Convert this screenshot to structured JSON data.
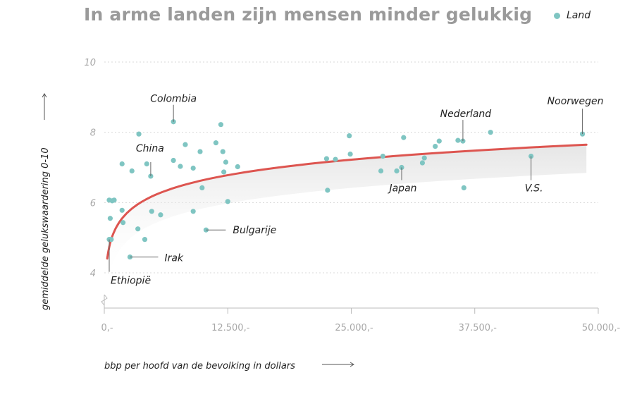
{
  "title": "In arme landen zijn mensen minder gelukkig",
  "legend": {
    "label": "Land",
    "color": "#7fc5c2"
  },
  "colors": {
    "point": "#7fc5c2",
    "trend": "#dd5550",
    "grid": "#d9d9d9",
    "axis": "#bbbbbb"
  },
  "chart_data": {
    "type": "scatter",
    "xlabel": "bbp per hoofd van de bevolking in dollars",
    "ylabel": "gemiddelde gelukswaardering 0-10",
    "xlim": [
      0,
      50000
    ],
    "ylim": [
      3.2,
      10
    ],
    "x_ticks": [
      0,
      12500,
      25000,
      37500,
      50000
    ],
    "x_tick_labels": [
      "0,-",
      "12.500,-",
      "25.000,-",
      "37.500,-",
      "50.000,-"
    ],
    "y_ticks": [
      4,
      6,
      8,
      10
    ],
    "y_tick_labels": [
      "4",
      "6",
      "8",
      "10"
    ],
    "grid": "horizontal dotted",
    "legend_position": "top-right",
    "series": [
      {
        "name": "Land",
        "points": [
          {
            "x": 7000,
            "y": 8.3
          },
          {
            "x": 11800,
            "y": 8.22
          },
          {
            "x": 3500,
            "y": 7.95
          },
          {
            "x": 8200,
            "y": 7.65
          },
          {
            "x": 11300,
            "y": 7.7
          },
          {
            "x": 9700,
            "y": 7.45
          },
          {
            "x": 12000,
            "y": 7.45
          },
          {
            "x": 1800,
            "y": 7.1
          },
          {
            "x": 4300,
            "y": 7.1
          },
          {
            "x": 7000,
            "y": 7.2
          },
          {
            "x": 12300,
            "y": 7.15
          },
          {
            "x": 2800,
            "y": 6.9
          },
          {
            "x": 7700,
            "y": 7.03
          },
          {
            "x": 9000,
            "y": 6.98
          },
          {
            "x": 12100,
            "y": 6.87
          },
          {
            "x": 13500,
            "y": 7.02
          },
          {
            "x": 4700,
            "y": 6.75
          },
          {
            "x": 9900,
            "y": 6.42
          },
          {
            "x": 500,
            "y": 6.07
          },
          {
            "x": 800,
            "y": 6.05
          },
          {
            "x": 1000,
            "y": 6.07
          },
          {
            "x": 12500,
            "y": 6.03
          },
          {
            "x": 1800,
            "y": 5.78
          },
          {
            "x": 4800,
            "y": 5.75
          },
          {
            "x": 5700,
            "y": 5.65
          },
          {
            "x": 9000,
            "y": 5.75
          },
          {
            "x": 600,
            "y": 5.55
          },
          {
            "x": 1900,
            "y": 5.43
          },
          {
            "x": 3400,
            "y": 5.25
          },
          {
            "x": 10300,
            "y": 5.22
          },
          {
            "x": 4100,
            "y": 4.95
          },
          {
            "x": 500,
            "y": 4.95
          },
          {
            "x": 700,
            "y": 4.95
          },
          {
            "x": 2600,
            "y": 4.45
          },
          {
            "x": 22500,
            "y": 7.25
          },
          {
            "x": 23400,
            "y": 7.23
          },
          {
            "x": 24800,
            "y": 7.9
          },
          {
            "x": 24900,
            "y": 7.38
          },
          {
            "x": 22600,
            "y": 6.35
          },
          {
            "x": 28000,
            "y": 6.9
          },
          {
            "x": 28200,
            "y": 7.32
          },
          {
            "x": 29600,
            "y": 6.9
          },
          {
            "x": 30100,
            "y": 7.0
          },
          {
            "x": 30300,
            "y": 7.85
          },
          {
            "x": 32200,
            "y": 7.13
          },
          {
            "x": 32400,
            "y": 7.27
          },
          {
            "x": 33500,
            "y": 7.6
          },
          {
            "x": 33900,
            "y": 7.75
          },
          {
            "x": 35800,
            "y": 7.77
          },
          {
            "x": 36300,
            "y": 7.75
          },
          {
            "x": 36400,
            "y": 6.42
          },
          {
            "x": 39100,
            "y": 8.0
          },
          {
            "x": 43200,
            "y": 7.32
          },
          {
            "x": 48400,
            "y": 7.95
          }
        ]
      }
    ],
    "trendline": {
      "type": "logarithmic",
      "x_range": [
        300,
        48800
      ]
    },
    "annotations": [
      {
        "label": "Colombia",
        "x": 7000,
        "y": 8.3
      },
      {
        "label": "China",
        "x": 4700,
        "y": 6.75
      },
      {
        "label": "Bulgarije",
        "x": 10300,
        "y": 5.22
      },
      {
        "label": "Irak",
        "x": 2600,
        "y": 4.45
      },
      {
        "label": "Ethiopië",
        "x": 500,
        "y": 4.95
      },
      {
        "label": "Japan",
        "x": 30100,
        "y": 7.0
      },
      {
        "label": "Nederland",
        "x": 36300,
        "y": 7.75
      },
      {
        "label": "V.S.",
        "x": 43200,
        "y": 7.32
      },
      {
        "label": "Noorwegen",
        "x": 48400,
        "y": 7.95
      }
    ]
  }
}
